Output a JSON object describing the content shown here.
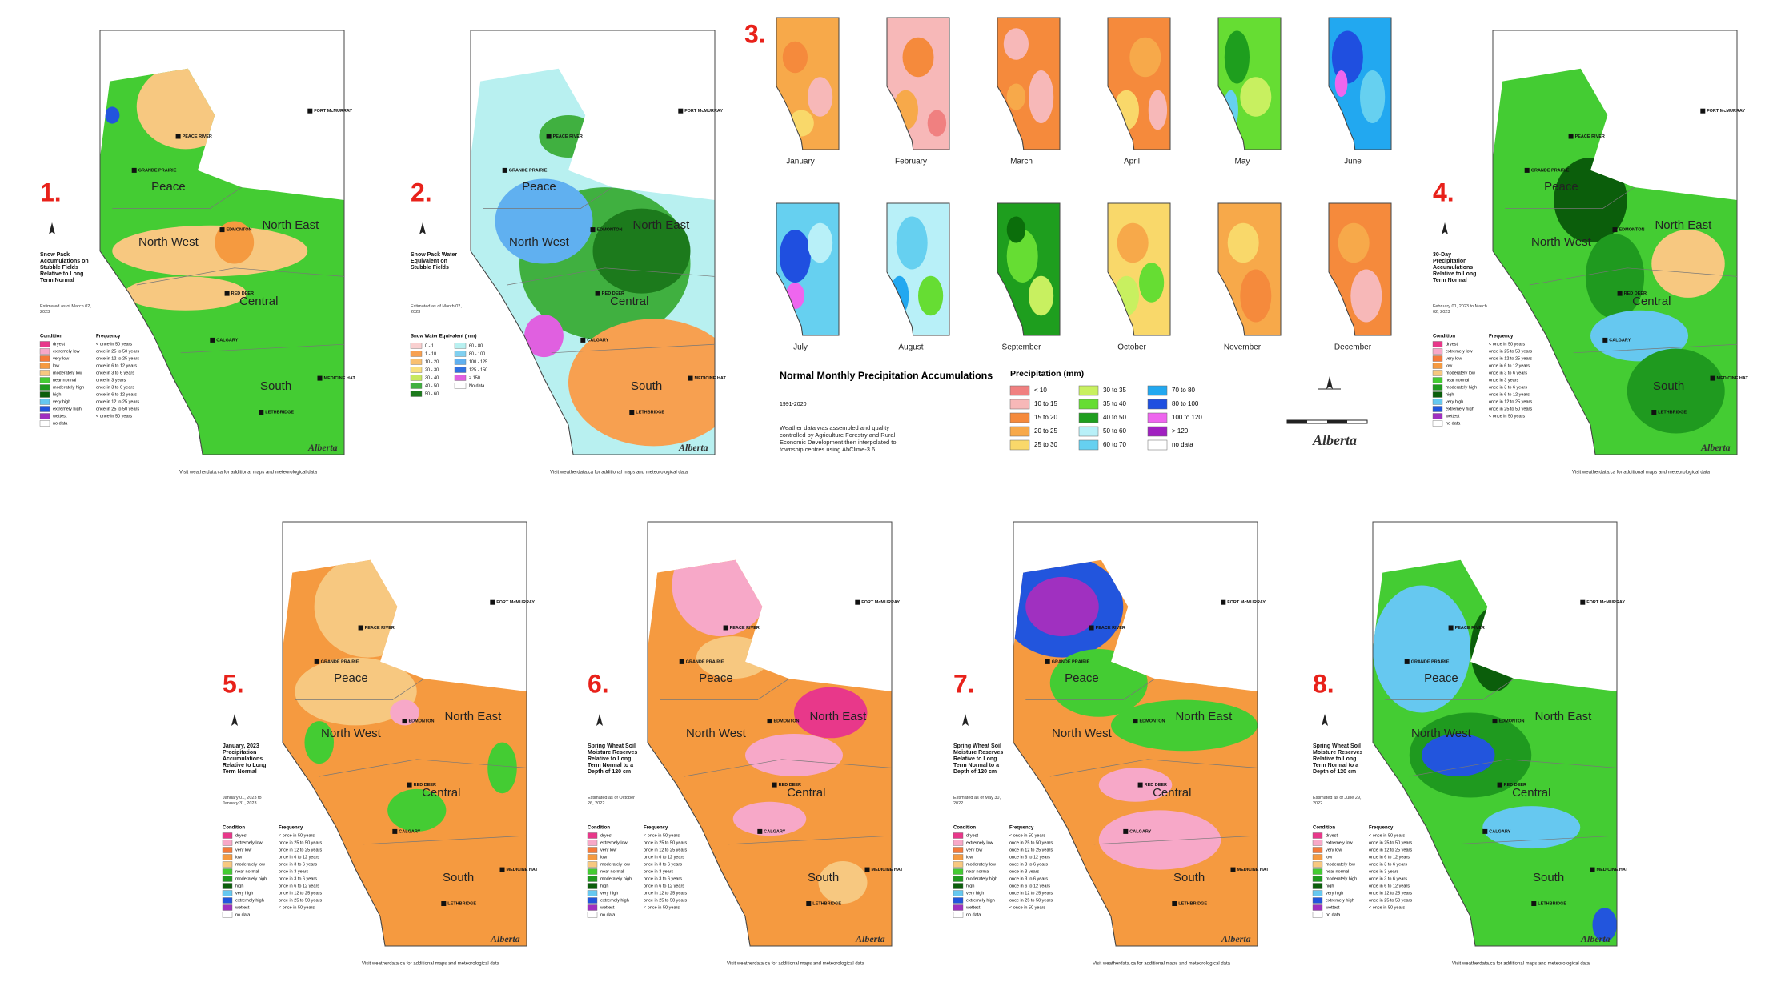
{
  "panels": [
    {
      "number": "1.",
      "title": "Snow Pack Accumulations on Stubble Fields Relative to Long Term Normal",
      "date": "Estimated as of March 02, 2023"
    },
    {
      "number": "2.",
      "title": "Snow Pack Water Equivalent on Stubble Fields",
      "date": "Estimated as of March 02, 2023"
    },
    {
      "number": "4.",
      "title": "30-Day Precipitation Accumulations Relative to Long Term Normal",
      "date": "February 01, 2023 to March 02, 2023"
    },
    {
      "number": "5.",
      "title": "January, 2023 Precipitation Accumulations Relative to Long Term Normal",
      "date": "January 01, 2023 to January 31, 2023"
    },
    {
      "number": "6.",
      "title": "Spring Wheat Soil Moisture Reserves Relative to Long Term Normal to a Depth of 120 cm",
      "date": "Estimated as of October 26, 2022"
    },
    {
      "number": "7.",
      "title": "Spring Wheat Soil Moisture Reserves Relative to Long Term Normal to a Depth of 120 cm",
      "date": "Estimated as of May 30, 2022"
    },
    {
      "number": "8.",
      "title": "Spring Wheat Soil Moisture Reserves Relative to Long Term Normal to a Depth of 120 cm",
      "date": "Estimated as of June 29, 2022"
    }
  ],
  "regions": [
    "Peace",
    "North West",
    "North East",
    "Central",
    "South"
  ],
  "cities": [
    "PEACE RIVER",
    "GRANDE PRAIRIE",
    "FORT McMURRAY",
    "EDMONTON",
    "RED DEER",
    "CALGARY",
    "LETHBRIDGE",
    "MEDICINE HAT"
  ],
  "condition_legend": {
    "heading_condition": "Condition",
    "heading_frequency": "Frequency",
    "items": [
      {
        "condition": "dryest",
        "frequency": "< once in 50 years"
      },
      {
        "condition": "extremely low",
        "frequency": "once in 25 to 50 years"
      },
      {
        "condition": "very low",
        "frequency": "once in 12 to 25 years"
      },
      {
        "condition": "low",
        "frequency": "once in 6 to 12 years"
      },
      {
        "condition": "moderately low",
        "frequency": "once in 3 to 6 years"
      },
      {
        "condition": "near normal",
        "frequency": "once in 3 years"
      },
      {
        "condition": "moderately high",
        "frequency": "once in 3 to 6 years"
      },
      {
        "condition": "high",
        "frequency": "once in 6 to 12 years"
      },
      {
        "condition": "very high",
        "frequency": "once in 12 to 25 years"
      },
      {
        "condition": "extremely high",
        "frequency": "once in 25 to 50 years"
      },
      {
        "condition": "wettest",
        "frequency": "< once in 50 years"
      },
      {
        "condition": "no data",
        "frequency": ""
      }
    ]
  },
  "swe_legend": {
    "heading": "Snow Water Equivalent (mm)",
    "items": [
      "0 - 1",
      "1 - 10",
      "10 - 20",
      "20 - 30",
      "30 - 40",
      "40 - 50",
      "50 - 60",
      "60 - 80",
      "80 - 100",
      "100 - 125",
      "125 - 150",
      "> 150",
      "No data"
    ]
  },
  "monthly": {
    "number": "3.",
    "months": [
      "January",
      "February",
      "March",
      "April",
      "May",
      "June",
      "July",
      "August",
      "September",
      "October",
      "November",
      "December"
    ],
    "title": "Normal Monthly Precipitation Accumulations",
    "period": "1991-2020",
    "description": "Weather data was assembled and quality controlled by Agriculture Forestry and Rural Economic Development then interpolated to township centres using AbClime-3.6",
    "legend_heading": "Precipitation (mm)",
    "legend_items": [
      "< 10",
      "10 to 15",
      "15 to 20",
      "20 to 25",
      "25 to 30",
      "30 to 35",
      "35 to 40",
      "40 to 50",
      "50 to 60",
      "60 to 70",
      "70 to 80",
      "80 to 100",
      "100 to 120",
      "> 120",
      "no data"
    ]
  },
  "footer": "Visit weatherdata.ca for additional maps and meteorological data",
  "logo": "Alberta"
}
